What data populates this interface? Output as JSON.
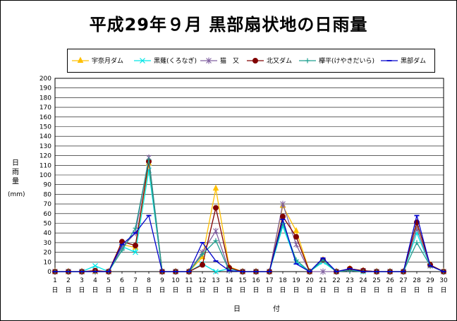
{
  "chart_data": {
    "type": "line",
    "title": "平成29年９月 黒部扇状地の日雨量",
    "ylabel_chars": [
      "日",
      "雨",
      "量"
    ],
    "ylabel_unit": "(mm)",
    "xlabel": "日　付",
    "x_day_suffix": "日",
    "ylim": [
      0,
      200
    ],
    "ytick_step": 10,
    "grid": true,
    "legend_position": "top",
    "categories": [
      1,
      2,
      3,
      4,
      5,
      6,
      7,
      8,
      9,
      10,
      11,
      12,
      13,
      14,
      15,
      16,
      17,
      18,
      19,
      20,
      21,
      22,
      23,
      24,
      25,
      26,
      27,
      28,
      29,
      30
    ],
    "series": [
      {
        "name": "宇奈月ダム",
        "color": "#ffc000",
        "marker": "triangle",
        "values": [
          0,
          0,
          0,
          0,
          0,
          28,
          25,
          112,
          0,
          0,
          0,
          15,
          86,
          5,
          0,
          0,
          0,
          68,
          42,
          0,
          12,
          0,
          3,
          1,
          0,
          0,
          0,
          45,
          7,
          0
        ]
      },
      {
        "name": "黒薙(くろなぎ)",
        "color": "#00e5e5",
        "marker": "x",
        "values": [
          0,
          0,
          0,
          6,
          0,
          26,
          20,
          105,
          0,
          0,
          0,
          8,
          0,
          3,
          0,
          0,
          0,
          47,
          10,
          0,
          10,
          0,
          2,
          0,
          0,
          0,
          0,
          40,
          6,
          0
        ]
      },
      {
        "name": "猫　又",
        "color": "#8060a0",
        "marker": "star",
        "values": [
          0,
          0,
          0,
          0,
          0,
          25,
          40,
          118,
          0,
          0,
          0,
          20,
          42,
          1,
          0,
          0,
          0,
          70,
          28,
          0,
          0,
          0,
          2,
          1,
          0,
          0,
          0,
          45,
          6,
          0
        ]
      },
      {
        "name": "北又ダム",
        "color": "#800000",
        "marker": "dot",
        "values": [
          0,
          0,
          0,
          1,
          0,
          31,
          27,
          114,
          0,
          0,
          0,
          7,
          66,
          4,
          0,
          0,
          0,
          57,
          36,
          0,
          12,
          0,
          3,
          1,
          0,
          0,
          0,
          51,
          7,
          0
        ]
      },
      {
        "name": "欅平(けやきだいら)",
        "color": "#20a090",
        "marker": "plus",
        "values": [
          0,
          0,
          0,
          0,
          0,
          22,
          45,
          116,
          0,
          0,
          0,
          18,
          32,
          1,
          0,
          0,
          0,
          50,
          12,
          0,
          12,
          0,
          1,
          0,
          0,
          0,
          0,
          30,
          6,
          0
        ]
      },
      {
        "name": "黒部ダム",
        "color": "#0000cc",
        "marker": "dash",
        "values": [
          0,
          0,
          0,
          0,
          0,
          28,
          40,
          58,
          0,
          0,
          0,
          30,
          11,
          1,
          0,
          0,
          0,
          54,
          8,
          0,
          14,
          0,
          3,
          0,
          0,
          0,
          0,
          58,
          6,
          0
        ]
      }
    ]
  }
}
